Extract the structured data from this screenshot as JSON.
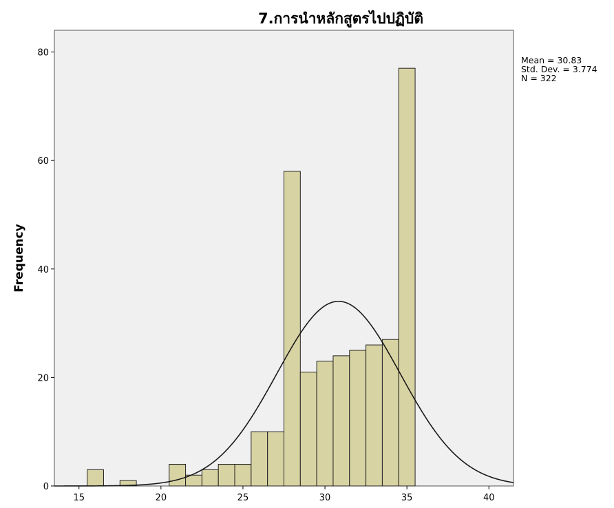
{
  "chart_data": {
    "type": "bar",
    "subtype": "histogram",
    "title": "7.การนำหลักสูตรไปปฏิบัติ",
    "xlabel": "",
    "ylabel": "Frequency",
    "xlim": [
      13.5,
      41.5
    ],
    "ylim": [
      0,
      84
    ],
    "x_ticks": [
      15,
      20,
      25,
      30,
      35,
      40
    ],
    "y_ticks": [
      0,
      20,
      40,
      60,
      80
    ],
    "bin_width": 1,
    "bins": [
      {
        "x": 16,
        "count": 3
      },
      {
        "x": 18,
        "count": 1
      },
      {
        "x": 21,
        "count": 4
      },
      {
        "x": 22,
        "count": 2
      },
      {
        "x": 23,
        "count": 3
      },
      {
        "x": 24,
        "count": 4
      },
      {
        "x": 25,
        "count": 4
      },
      {
        "x": 26,
        "count": 10
      },
      {
        "x": 27,
        "count": 10
      },
      {
        "x": 28,
        "count": 58
      },
      {
        "x": 29,
        "count": 21
      },
      {
        "x": 30,
        "count": 23
      },
      {
        "x": 31,
        "count": 24
      },
      {
        "x": 32,
        "count": 25
      },
      {
        "x": 33,
        "count": 26
      },
      {
        "x": 34,
        "count": 27
      },
      {
        "x": 35,
        "count": 77
      }
    ],
    "normal_curve": {
      "mean": 30.83,
      "std": 3.774,
      "n": 322
    },
    "stats_text": [
      "Mean = 30.83",
      "Std. Dev. = 3.774",
      "N = 322"
    ],
    "colors": {
      "bar_fill": "#d8d3a3",
      "bar_stroke": "#222222",
      "plot_bg": "#f0f0f0",
      "curve": "#1a1a1a"
    },
    "grid": false,
    "legend": "none"
  }
}
